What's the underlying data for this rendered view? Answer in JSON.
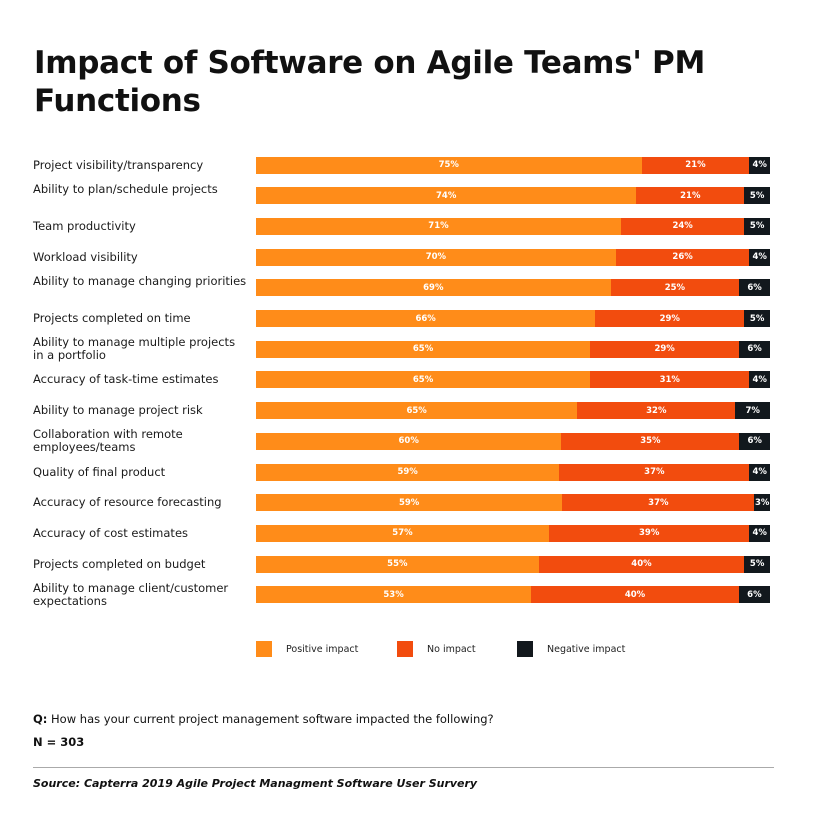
{
  "chart_data": {
    "type": "bar",
    "orientation": "horizontal-stacked-100",
    "title": "Impact of Software on Agile Teams' PM Functions",
    "categories": [
      "Project visibility/transparency",
      "Ability to plan/schedule projects",
      "Team productivity",
      "Workload visibility",
      "Ability to manage changing priorities",
      "Projects completed on time",
      "Ability to manage multiple projects in a portfolio",
      "Accuracy of task-time estimates",
      "Ability to manage project risk",
      "Collaboration with remote employees/teams",
      "Quality of final product",
      "Accuracy of resource forecasting",
      "Accuracy of cost estimates",
      "Projects completed on budget",
      "Ability to manage client/customer expectations"
    ],
    "series": [
      {
        "name": "Positive impact",
        "color": "#FF8C19",
        "values": [
          75,
          74,
          71,
          70,
          69,
          66,
          65,
          65,
          65,
          60,
          59,
          59,
          57,
          55,
          53
        ]
      },
      {
        "name": "No impact",
        "color": "#F24C0E",
        "values": [
          21,
          21,
          24,
          26,
          25,
          29,
          29,
          31,
          32,
          35,
          37,
          37,
          39,
          40,
          40
        ]
      },
      {
        "name": "Negative impact",
        "color": "#12181D",
        "values": [
          4,
          5,
          5,
          4,
          6,
          5,
          6,
          4,
          7,
          6,
          4,
          3,
          4,
          5,
          6
        ]
      }
    ],
    "unit": "%",
    "legend_position": "bottom",
    "grid": false
  },
  "footer": {
    "question_prefix": "Q:",
    "question": " How has your current project management software impacted the following?",
    "n": "N = 303",
    "source": "Source: Capterra 2019 Agile Project Managment Software User Survery"
  }
}
